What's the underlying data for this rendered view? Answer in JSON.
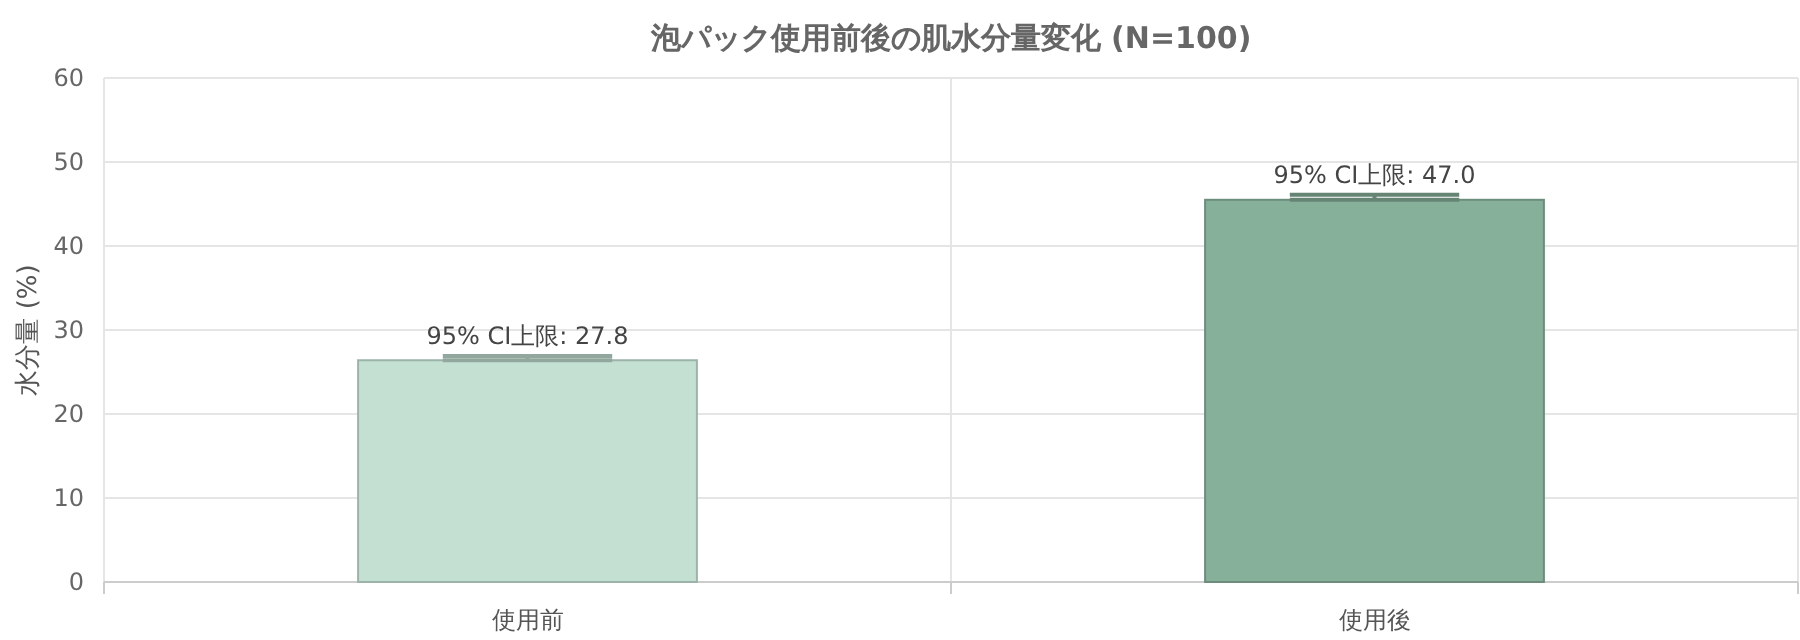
{
  "chart_data": {
    "type": "bar",
    "title": "泡パック使用前後の肌水分量変化 (N=100)",
    "ylabel": "水分量 (%)",
    "categories": [
      "使用前",
      "使用後"
    ],
    "values": [
      26.4,
      45.5
    ],
    "colors": [
      "#c3e0d3",
      "#87b09b"
    ],
    "errors": [
      [
        26.4,
        26.9
      ],
      [
        45.5,
        46.1
      ]
    ],
    "annotations": [
      {
        "text": "95% CI上限: 27.8",
        "x": "使用前",
        "y": 27.8
      },
      {
        "text": "95% CI上限: 47.0",
        "x": "使用後",
        "y": 47.0
      }
    ],
    "ylim": [
      0,
      60
    ],
    "yticks": [
      0,
      10,
      20,
      30,
      40,
      50,
      60
    ],
    "grid": true
  }
}
